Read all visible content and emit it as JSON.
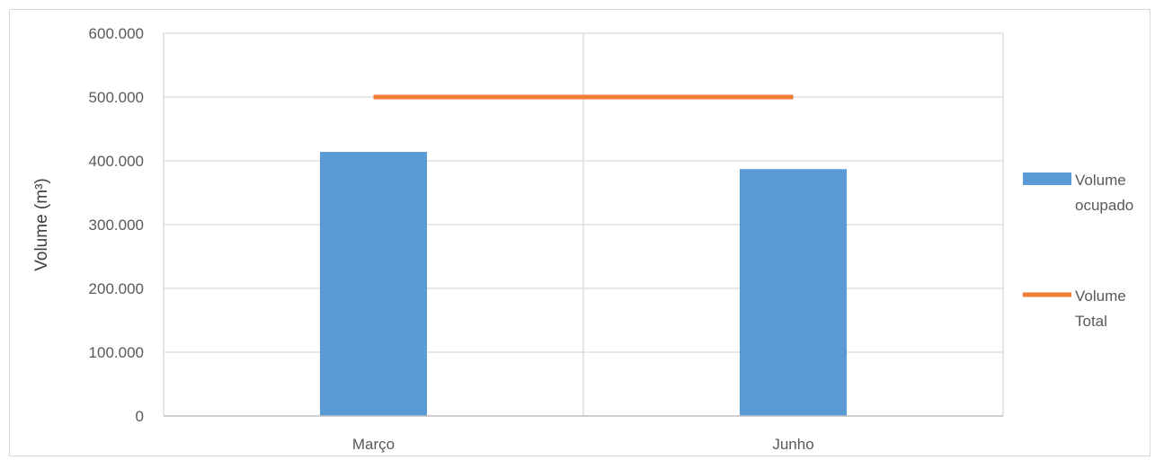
{
  "chart_data": {
    "type": "bar",
    "title": "",
    "xlabel": "",
    "ylabel": "Volume (m³)",
    "categories": [
      "Março",
      "Junho"
    ],
    "ylim": [
      0,
      600000
    ],
    "yticks": [
      0,
      100000,
      200000,
      300000,
      400000,
      500000,
      600000
    ],
    "ytick_labels": [
      "0",
      "100.000",
      "200.000",
      "300.000",
      "400.000",
      "500.000",
      "600.000"
    ],
    "grid": true,
    "legend_position": "right",
    "series": [
      {
        "name": "Volume ocupado",
        "name_lines": [
          "Volume",
          "ocupado"
        ],
        "kind": "bar",
        "color": "#5b9bd5",
        "values": [
          414000,
          387000
        ]
      },
      {
        "name": "Volume Total",
        "name_lines": [
          "Volume",
          "Total"
        ],
        "kind": "line",
        "color": "#ed7d31",
        "values": [
          500000,
          500000
        ]
      }
    ]
  }
}
